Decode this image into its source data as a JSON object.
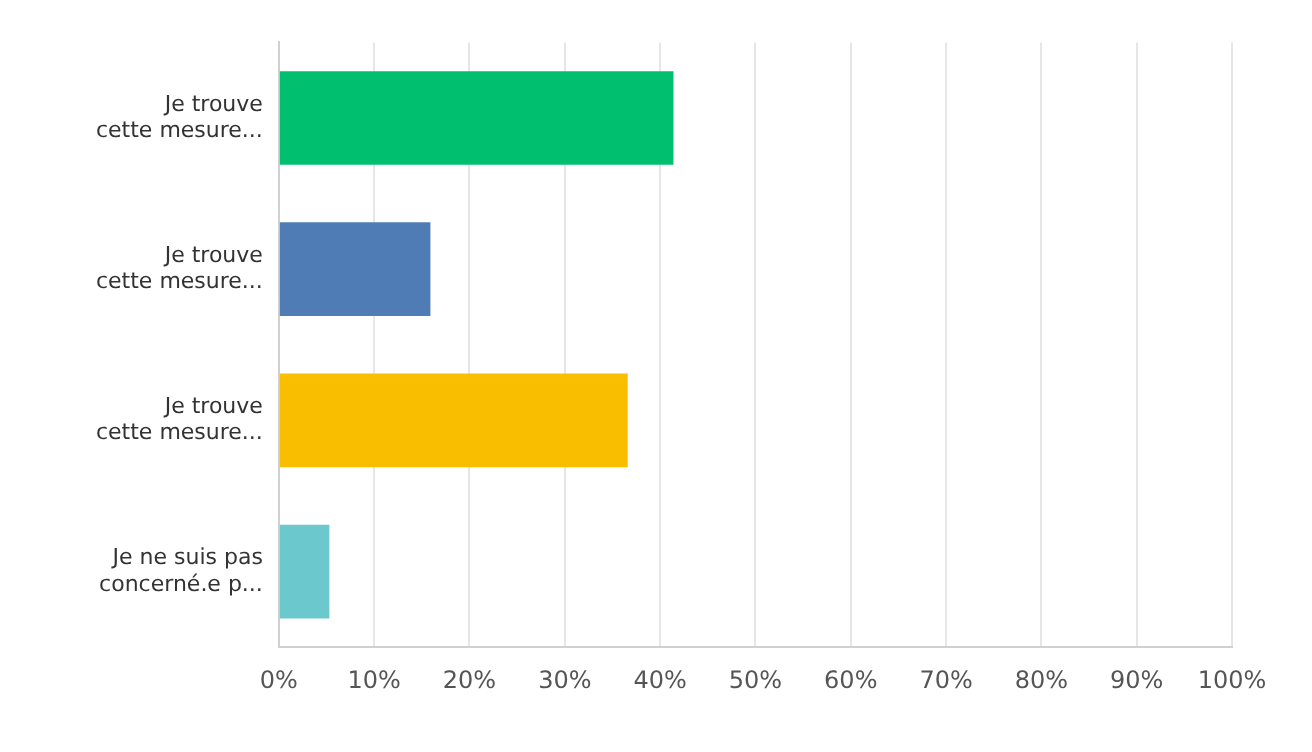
{
  "chart_data": {
    "type": "bar",
    "orientation": "horizontal",
    "categories": [
      "Je trouve\ncette mesure...",
      "Je trouve\ncette mesure...",
      "Je trouve\ncette mesure...",
      "Je ne suis pas\nconcerné.e p..."
    ],
    "values": [
      41.4,
      15.9,
      36.6,
      5.3
    ],
    "colors": [
      "#00bf6f",
      "#507cb6",
      "#f9be00",
      "#6bc8cd"
    ],
    "xlim": [
      0,
      100
    ],
    "xticks": [
      {
        "value": 0,
        "label": "0%"
      },
      {
        "value": 10,
        "label": "10%"
      },
      {
        "value": 20,
        "label": "20%"
      },
      {
        "value": 30,
        "label": "30%"
      },
      {
        "value": 40,
        "label": "40%"
      },
      {
        "value": 50,
        "label": "50%"
      },
      {
        "value": 60,
        "label": "60%"
      },
      {
        "value": 70,
        "label": "70%"
      },
      {
        "value": 80,
        "label": "80%"
      },
      {
        "value": 90,
        "label": "90%"
      },
      {
        "value": 100,
        "label": "100%"
      }
    ],
    "grid": "x",
    "legend": false
  }
}
